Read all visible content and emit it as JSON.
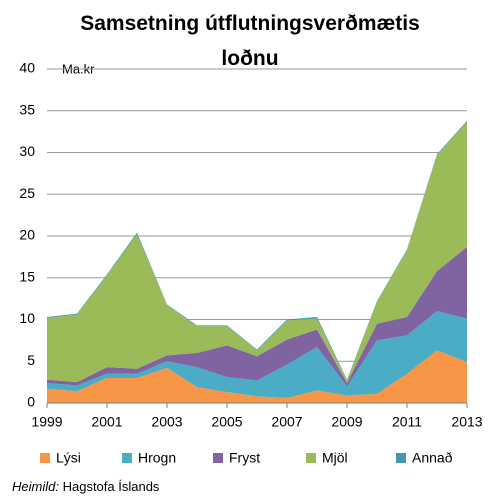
{
  "chart_data": {
    "type": "stacked_area",
    "title": "Samsetning útflutningsverðmætis loðnu",
    "y_unit_label": "Ma.kr",
    "x": [
      1999,
      2000,
      2001,
      2002,
      2003,
      2004,
      2005,
      2006,
      2007,
      2008,
      2009,
      2010,
      2011,
      2012,
      2013
    ],
    "xlim": [
      1999,
      2013
    ],
    "xticks": [
      1999,
      2001,
      2003,
      2005,
      2007,
      2009,
      2011,
      2013
    ],
    "ylim": [
      0,
      40
    ],
    "yticks": [
      0,
      5,
      10,
      15,
      20,
      25,
      30,
      35,
      40
    ],
    "grid": true,
    "legend": "bottom",
    "series": [
      {
        "name": "Lýsi",
        "color": "#f79646",
        "values": [
          1.7,
          1.4,
          3.0,
          3.0,
          4.2,
          1.9,
          1.3,
          0.8,
          0.6,
          1.5,
          0.9,
          1.1,
          3.5,
          6.3,
          4.9
        ]
      },
      {
        "name": "Hrogn",
        "color": "#4bacc6",
        "values": [
          0.7,
          0.7,
          0.5,
          0.5,
          0.8,
          2.4,
          1.8,
          1.9,
          4.0,
          5.2,
          1.1,
          6.4,
          4.6,
          4.7,
          5.2
        ]
      },
      {
        "name": "Fryst",
        "color": "#8064a2",
        "values": [
          0.4,
          0.4,
          0.8,
          0.6,
          0.7,
          1.7,
          3.8,
          2.9,
          3.0,
          2.1,
          0.4,
          2.0,
          2.2,
          4.8,
          8.6
        ]
      },
      {
        "name": "Mjöl",
        "color": "#9bbb59",
        "values": [
          7.4,
          8.1,
          11.0,
          16.1,
          6.0,
          3.2,
          2.3,
          0.7,
          2.3,
          1.3,
          0.3,
          2.6,
          8.0,
          13.9,
          15.0
        ]
      },
      {
        "name": "Annað",
        "color": "#4198af",
        "values": [
          0.1,
          0.1,
          0.1,
          0.2,
          0.1,
          0.1,
          0.1,
          0.1,
          0.1,
          0.2,
          0.1,
          0.1,
          0.1,
          0.1,
          0.1
        ]
      }
    ],
    "source_label": "Heimild:",
    "source": "Hagstofa Íslands"
  }
}
